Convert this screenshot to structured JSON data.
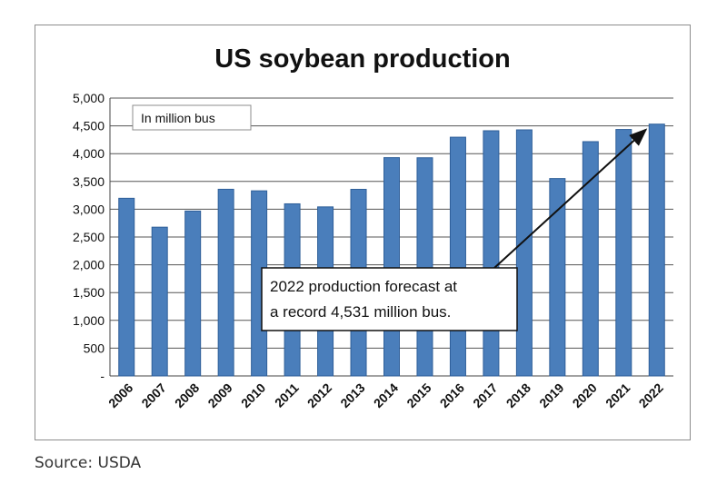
{
  "source_note": "Source: USDA",
  "chart_data": {
    "type": "bar",
    "title": "US soybean production",
    "unit_label": "In million bus",
    "annotation": {
      "line1": "2022  production forecast at",
      "line2": "a record 4,531  million bus."
    },
    "categories": [
      "2006",
      "2007",
      "2008",
      "2009",
      "2010",
      "2011",
      "2012",
      "2013",
      "2014",
      "2015",
      "2016",
      "2017",
      "2018",
      "2019",
      "2020",
      "2021",
      "2022"
    ],
    "values": [
      3197,
      2677,
      2967,
      3359,
      3331,
      3097,
      3042,
      3358,
      3928,
      3926,
      4296,
      4412,
      4428,
      3552,
      4216,
      4435,
      4531
    ],
    "ylim": [
      0,
      5000
    ],
    "yticks": [
      0,
      500,
      1000,
      1500,
      2000,
      2500,
      3000,
      3500,
      4000,
      4500,
      5000
    ],
    "ytick_labels": [
      "-",
      "500",
      "1,000",
      "1,500",
      "2,000",
      "2,500",
      "3,000",
      "3,500",
      "4,000",
      "4,500",
      "5,000"
    ],
    "grid": true,
    "bar_color": "#4a7ebb",
    "bar_edge_color": "#2f5f99"
  }
}
